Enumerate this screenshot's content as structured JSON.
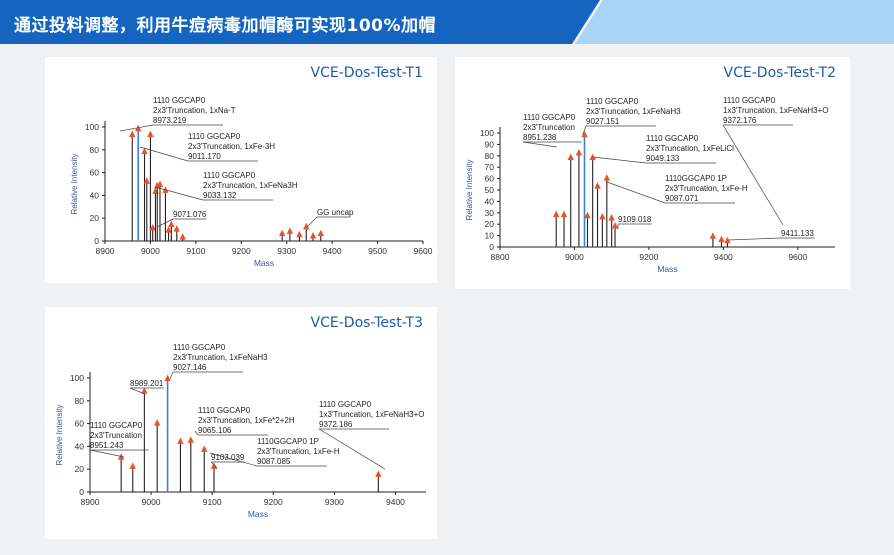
{
  "header": {
    "title": "通过投料调整，利用牛痘病毒加帽酶可实现100%加帽",
    "accent": "#1565c0",
    "band": "#a9d4f5"
  },
  "chart_data": [
    {
      "type": "bar",
      "title": "VCE-Dos-Test-T1",
      "xlabel": "Mass",
      "ylabel": "Relative Intensity",
      "xlim": [
        8900,
        9600
      ],
      "ylim": [
        0,
        100
      ],
      "xticks": [
        "8900",
        "9000",
        "9100",
        "9200",
        "9300",
        "9400",
        "9500",
        "9600"
      ],
      "yticks": [
        "0",
        "20",
        "40",
        "60",
        "80",
        "100"
      ],
      "peaks": [
        {
          "x": 8960,
          "y": 93
        },
        {
          "x": 8973,
          "y": 98,
          "hl": true
        },
        {
          "x": 8987,
          "y": 78
        },
        {
          "x": 8992,
          "y": 52
        },
        {
          "x": 9000,
          "y": 93
        },
        {
          "x": 9005,
          "y": 11
        },
        {
          "x": 9011,
          "y": 43
        },
        {
          "x": 9015,
          "y": 48
        },
        {
          "x": 9021,
          "y": 49
        },
        {
          "x": 9033,
          "y": 44
        },
        {
          "x": 9040,
          "y": 9
        },
        {
          "x": 9046,
          "y": 14
        },
        {
          "x": 9058,
          "y": 10
        },
        {
          "x": 9071,
          "y": 3
        },
        {
          "x": 9290,
          "y": 6
        },
        {
          "x": 9307,
          "y": 8
        },
        {
          "x": 9328,
          "y": 5
        },
        {
          "x": 9343,
          "y": 12
        },
        {
          "x": 9358,
          "y": 4
        },
        {
          "x": 9375,
          "y": 6
        }
      ],
      "annotations": [
        {
          "lines": [
            "1110 GGCAP0",
            "2x3'Truncation, 1xNa-T",
            "8973.219"
          ]
        },
        {
          "lines": [
            "1110 GGCAP0",
            "2x3'Truncation, 1xFe-3H",
            "9011.170"
          ]
        },
        {
          "lines": [
            "1110 GGCAP0",
            "2x3'Truncation, 1xFeNa3H",
            "9033.132"
          ]
        },
        {
          "lines": [
            "9071.076"
          ]
        },
        {
          "lines": [
            "GG uncap"
          ]
        }
      ]
    },
    {
      "type": "bar",
      "title": "VCE-Dos-Test-T2",
      "xlabel": "Mass",
      "ylabel": "Relative Intensity",
      "xlim": [
        8800,
        9700
      ],
      "ylim": [
        0,
        100
      ],
      "xticks": [
        "8800",
        "9000",
        "9200",
        "9400",
        "9600"
      ],
      "yticks": [
        "0",
        "10",
        "20",
        "30",
        "40",
        "50",
        "60",
        "70",
        "80",
        "90",
        "100"
      ],
      "peaks": [
        {
          "x": 8951,
          "y": 28
        },
        {
          "x": 8972,
          "y": 28
        },
        {
          "x": 8990,
          "y": 78
        },
        {
          "x": 9012,
          "y": 82
        },
        {
          "x": 9027,
          "y": 98,
          "hl": true
        },
        {
          "x": 9035,
          "y": 27
        },
        {
          "x": 9049,
          "y": 78
        },
        {
          "x": 9062,
          "y": 53
        },
        {
          "x": 9075,
          "y": 26
        },
        {
          "x": 9087,
          "y": 60
        },
        {
          "x": 9100,
          "y": 25
        },
        {
          "x": 9109,
          "y": 18
        },
        {
          "x": 9372,
          "y": 9
        },
        {
          "x": 9395,
          "y": 6
        },
        {
          "x": 9411,
          "y": 5
        }
      ],
      "annotations": [
        {
          "lines": [
            "1110 GGCAP0",
            "2x3'Truncation, 1xFeNaH3",
            "9027.151"
          ]
        },
        {
          "lines": [
            "1110 GGCAP0",
            "2x3'Truncation",
            "8951.238"
          ]
        },
        {
          "lines": [
            "1110 GGCAP0",
            "1x3'Truncation, 1xFeNaH3+O",
            "9372.176"
          ]
        },
        {
          "lines": [
            "1110 GGCAP0",
            "2x3'Truncation, 1xFeLiCl",
            "9049.133"
          ]
        },
        {
          "lines": [
            "1110GGCAP0 1P",
            "2x3'Truncation, 1xFe-H",
            "9087.071"
          ]
        },
        {
          "lines": [
            "9109.018"
          ]
        },
        {
          "lines": [
            "9411.133"
          ]
        }
      ]
    },
    {
      "type": "bar",
      "title": "VCE-Dos-Test-T3",
      "xlabel": "Mass",
      "ylabel": "Relative Intensity",
      "xlim": [
        8900,
        9450
      ],
      "ylim": [
        0,
        100
      ],
      "xticks": [
        "8900",
        "9000",
        "9100",
        "9200",
        "9300",
        "9400"
      ],
      "yticks": [
        "0",
        "20",
        "40",
        "60",
        "80",
        "100"
      ],
      "peaks": [
        {
          "x": 8951,
          "y": 30
        },
        {
          "x": 8970,
          "y": 22
        },
        {
          "x": 8989,
          "y": 88
        },
        {
          "x": 9010,
          "y": 60
        },
        {
          "x": 9027,
          "y": 99,
          "hl": true
        },
        {
          "x": 9048,
          "y": 44
        },
        {
          "x": 9065,
          "y": 45
        },
        {
          "x": 9087,
          "y": 37
        },
        {
          "x": 9103,
          "y": 22
        },
        {
          "x": 9372,
          "y": 15
        }
      ],
      "annotations": [
        {
          "lines": [
            "1110 GGCAP0",
            "2x3'Truncation, 1xFeNaH3",
            "9027.146"
          ]
        },
        {
          "lines": [
            "8989.201"
          ]
        },
        {
          "lines": [
            "1110 GGCAP0",
            "2x3'Truncation, 1xFe*2+2H",
            "9065.106"
          ]
        },
        {
          "lines": [
            "1110 GGCAP0",
            "2x3'Truncation",
            "8951.243"
          ]
        },
        {
          "lines": [
            "1110GGCAP0 1P",
            "2x3'Truncation, 1xFe-H",
            "9087.085"
          ]
        },
        {
          "lines": [
            "9103.039"
          ]
        },
        {
          "lines": [
            "1110 GGCAP0",
            "1x3'Truncation, 1xFeNaH3+O",
            "9372.186"
          ]
        }
      ]
    }
  ]
}
